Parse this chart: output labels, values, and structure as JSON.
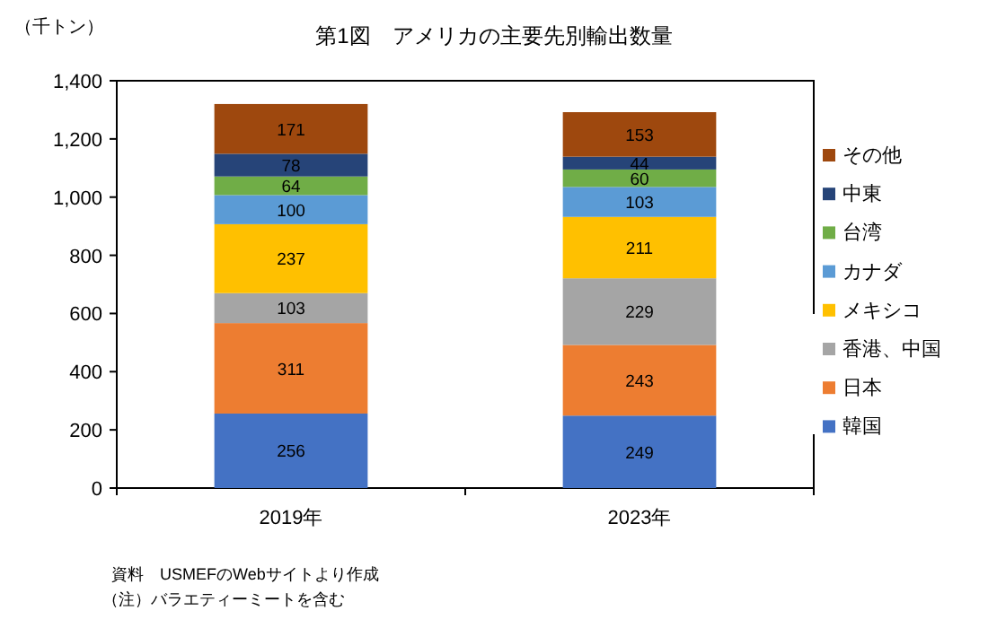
{
  "chart_data": {
    "type": "bar",
    "stacked": true,
    "title": "第1図　アメリカの主要先別輸出数量",
    "ylabel": "（千トン）",
    "categories": [
      "2019年",
      "2023年"
    ],
    "series": [
      {
        "name": "韓国",
        "color": "#4472c4",
        "values": [
          256,
          249
        ]
      },
      {
        "name": "日本",
        "color": "#ed7d31",
        "values": [
          311,
          243
        ]
      },
      {
        "name": "香港、中国",
        "color": "#a5a5a5",
        "values": [
          103,
          229
        ]
      },
      {
        "name": "メキシコ",
        "color": "#ffc000",
        "values": [
          237,
          211
        ]
      },
      {
        "name": "カナダ",
        "color": "#5b9bd5",
        "values": [
          100,
          103
        ]
      },
      {
        "name": "台湾",
        "color": "#70ad47",
        "values": [
          64,
          60
        ]
      },
      {
        "name": "中東",
        "color": "#264478",
        "values": [
          78,
          44
        ]
      },
      {
        "name": "その他",
        "color": "#9e480e",
        "values": [
          171,
          153
        ]
      }
    ],
    "ylim": [
      0,
      1400
    ],
    "yticks": [
      0,
      200,
      400,
      600,
      800,
      {
        "value": 1000,
        "label": "1,000"
      },
      {
        "value": 1200,
        "label": "1,200"
      },
      {
        "value": 1400,
        "label": "1,400"
      }
    ],
    "data_labels": true,
    "legend": "right",
    "grid": false,
    "annotations": [
      "資料　USMEFのWebサイトより作成",
      "（注）バラエティーミートを含む"
    ]
  }
}
